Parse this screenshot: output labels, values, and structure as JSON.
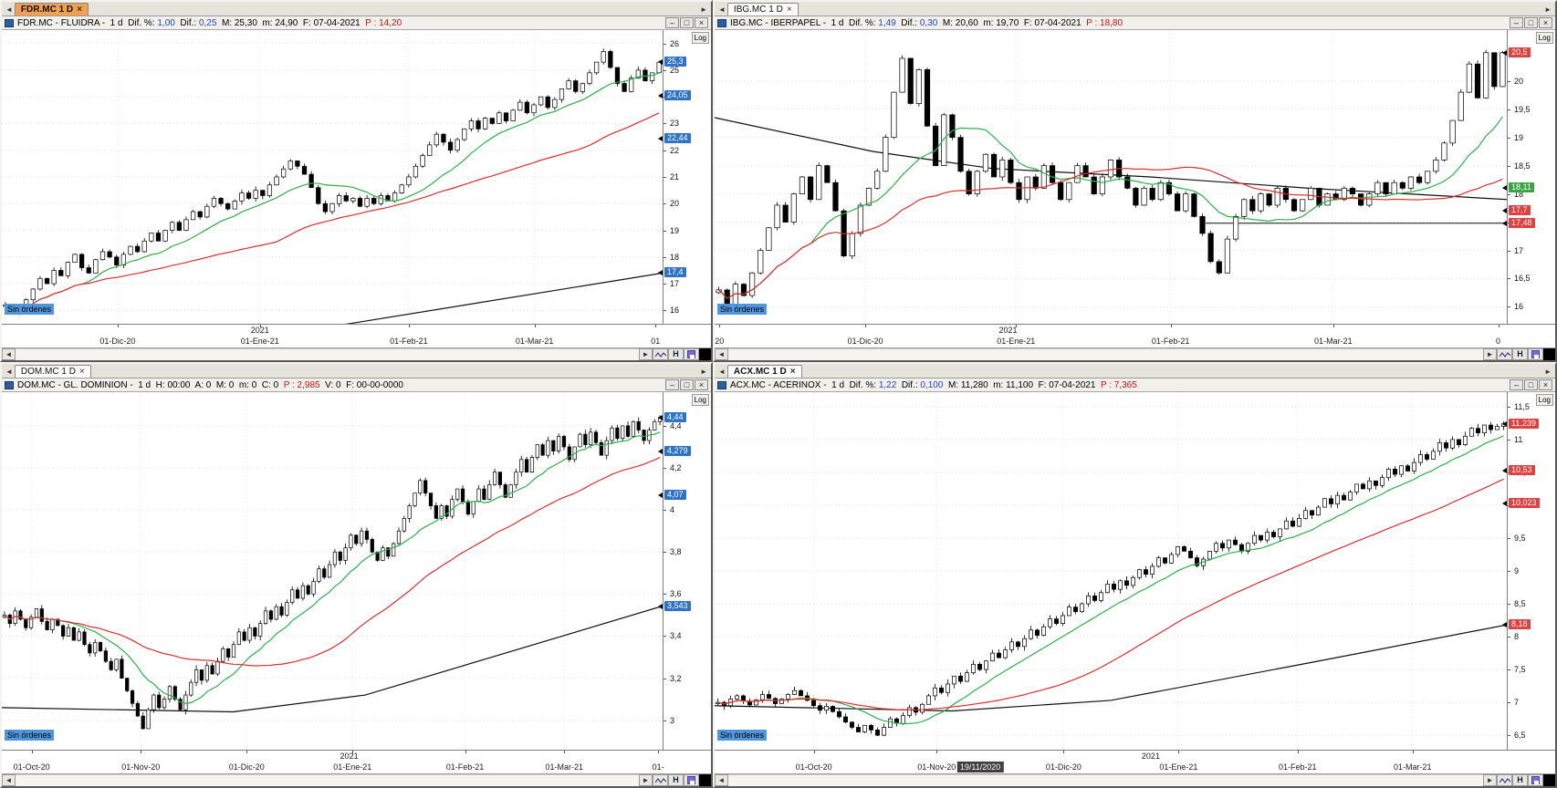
{
  "labels": {
    "log": "Log",
    "h": "H"
  },
  "icons": {
    "left_arrow": "◄",
    "right_arrow": "►",
    "minimize": "–",
    "maximize": "□",
    "close": "×"
  },
  "colors": {
    "up_candle": "#ffffff",
    "down_candle": "#000000",
    "ma_fast": "#2eb04a",
    "ma_slow": "#d93030",
    "trend": "#111111",
    "badge_blue": "#2f72c8",
    "badge_red": "#e04040",
    "badge_green": "#3aa545",
    "active_tab": "#f0a050",
    "no_orders_bg": "#4f96dc"
  },
  "panels": [
    {
      "tab": {
        "label": "FDR.MC 1 D",
        "active": true,
        "bold": true
      },
      "no_orders": "Sin órdenes",
      "title_segments": [
        {
          "text": "FDR.MC - FLUIDRA -  1 d  Dif. %: ",
          "color": "#000000"
        },
        {
          "text": "1,00",
          "color": "#2244cc"
        },
        {
          "text": "  Dif.: ",
          "color": "#000000"
        },
        {
          "text": "0,25",
          "color": "#2244cc"
        },
        {
          "text": "  M: 25,30  m: 24,90  F: 07-04-2021  ",
          "color": "#000000"
        },
        {
          "text": "P : 14,20",
          "color": "#cc1111"
        }
      ]
    },
    {
      "tab": {
        "label": "IBG.MC 1 D",
        "active": false,
        "bold": false
      },
      "no_orders": "Sin órdenes",
      "title_segments": [
        {
          "text": "IBG.MC - IBERPAPEL -  1 d  Dif. %: ",
          "color": "#000000"
        },
        {
          "text": "1,49",
          "color": "#2244cc"
        },
        {
          "text": "  Dif.: ",
          "color": "#000000"
        },
        {
          "text": "0,30",
          "color": "#2244cc"
        },
        {
          "text": "  M: 20,60  m: 19,70  F: 07-04-2021  ",
          "color": "#000000"
        },
        {
          "text": "P : 18,80",
          "color": "#cc1111"
        }
      ]
    },
    {
      "tab": {
        "label": "DOM.MC 1 D",
        "active": false,
        "bold": false
      },
      "no_orders": "Sin órdenes",
      "title_segments": [
        {
          "text": "DOM.MC - GL. DOMINION -  1 d  H: 00:00  A: 0  M: 0  m: 0  C: 0  ",
          "color": "#000000"
        },
        {
          "text": "P : 2,985",
          "color": "#cc1111"
        },
        {
          "text": "  V: 0  F: 00-00-0000",
          "color": "#000000"
        }
      ]
    },
    {
      "tab": {
        "label": "ACX.MC 1 D",
        "active": false,
        "bold": true
      },
      "no_orders": "Sin órdenes",
      "title_segments": [
        {
          "text": "ACX.MC - ACERINOX -  1 d  Dif. %: ",
          "color": "#000000"
        },
        {
          "text": "1,22",
          "color": "#2244cc"
        },
        {
          "text": "  Dif.: ",
          "color": "#000000"
        },
        {
          "text": "0,100",
          "color": "#2244cc"
        },
        {
          "text": "  M: 11,280  m: 11,100  F: 07-04-2021  ",
          "color": "#000000"
        },
        {
          "text": "P : 7,365",
          "color": "#cc1111"
        }
      ]
    }
  ],
  "chart_data": [
    {
      "type": "candlestick",
      "title": "FDR.MC - FLUIDRA 1d",
      "scale": "log",
      "y_min": 15.5,
      "y_max": 26.5,
      "y_ticks": [
        {
          "label": "26",
          "v": 26
        },
        {
          "label": "25",
          "v": 25
        },
        {
          "label": "24",
          "v": 24
        },
        {
          "label": "23",
          "v": 23
        },
        {
          "label": "22",
          "v": 22
        },
        {
          "label": "21",
          "v": 21
        },
        {
          "label": "20",
          "v": 20
        },
        {
          "label": "19",
          "v": 19
        },
        {
          "label": "18",
          "v": 18
        },
        {
          "label": "17",
          "v": 17
        },
        {
          "label": "16",
          "v": 16
        }
      ],
      "x_ticks": [
        {
          "label": "01-Dic-20",
          "pos": 0.175
        },
        {
          "label": "01-Ene-21",
          "pos": 0.39
        },
        {
          "label": "01-Feb-21",
          "pos": 0.615
        },
        {
          "label": "01-Mar-21",
          "pos": 0.805
        },
        {
          "label": "01",
          "pos": 0.988,
          "grid": false
        }
      ],
      "year_label": {
        "text": "2021",
        "pos": 0.39
      },
      "closes": [
        16.2,
        16.0,
        15.9,
        16.4,
        16.8,
        17.2,
        17.0,
        17.5,
        17.3,
        17.8,
        18.1,
        17.6,
        17.4,
        17.9,
        18.2,
        18.0,
        17.7,
        18.1,
        18.4,
        18.2,
        18.6,
        18.9,
        18.6,
        19.0,
        19.3,
        19.0,
        19.4,
        19.7,
        19.5,
        19.9,
        20.2,
        20.0,
        19.8,
        20.1,
        20.4,
        20.2,
        20.5,
        20.3,
        20.7,
        21.0,
        21.3,
        21.6,
        21.4,
        21.1,
        20.6,
        20.0,
        19.7,
        20.0,
        20.3,
        20.1,
        20.2,
        19.9,
        20.2,
        20.0,
        20.3,
        20.1,
        20.4,
        20.7,
        21.0,
        21.4,
        21.8,
        22.2,
        22.6,
        22.3,
        22.0,
        22.4,
        22.8,
        23.1,
        22.8,
        23.2,
        23.0,
        23.4,
        23.1,
        23.5,
        23.8,
        23.4,
        23.7,
        24.0,
        23.6,
        23.9,
        24.3,
        24.6,
        24.2,
        24.5,
        24.9,
        25.3,
        25.7,
        25.1,
        24.5,
        24.2,
        24.7,
        25.0,
        24.6,
        24.9,
        25.3
      ],
      "ma": [
        {
          "color": "#2eb04a",
          "window": 12
        },
        {
          "color": "#d93030",
          "window": 40
        }
      ],
      "trend": {
        "color": "#111111",
        "points": [
          {
            "pos": 0,
            "v": 13.4
          },
          {
            "pos": 1,
            "v": 17.4
          }
        ]
      },
      "badges": [
        {
          "label": "25,3",
          "v": 25.3,
          "bg": "#2f72c8"
        },
        {
          "label": "24,05",
          "v": 24.05,
          "bg": "#2f72c8"
        },
        {
          "label": "22,44",
          "v": 22.44,
          "bg": "#2f72c8"
        },
        {
          "label": "17,4",
          "v": 17.4,
          "bg": "#2f72c8"
        }
      ]
    },
    {
      "type": "candlestick",
      "title": "IBG.MC - IBERPAPEL 1d",
      "scale": "log",
      "y_min": 15.7,
      "y_max": 20.9,
      "y_ticks": [
        {
          "label": "20",
          "v": 20
        },
        {
          "label": "19,5",
          "v": 19.5
        },
        {
          "label": "19",
          "v": 19
        },
        {
          "label": "18,5",
          "v": 18.5
        },
        {
          "label": "18",
          "v": 18
        },
        {
          "label": "17,5",
          "v": 17.5
        },
        {
          "label": "17",
          "v": 17
        },
        {
          "label": "16,5",
          "v": 16.5
        },
        {
          "label": "16",
          "v": 16
        }
      ],
      "x_ticks": [
        {
          "label": "20",
          "pos": 0.006,
          "grid": false
        },
        {
          "label": "01-Dic-20",
          "pos": 0.19
        },
        {
          "label": "01-Ene-21",
          "pos": 0.38
        },
        {
          "label": "01-Feb-21",
          "pos": 0.575
        },
        {
          "label": "01-Mar-21",
          "pos": 0.78
        },
        {
          "label": "0",
          "pos": 0.988,
          "grid": false
        }
      ],
      "year_label": {
        "text": "2021",
        "pos": 0.37
      },
      "closes": [
        16.3,
        16.0,
        16.4,
        16.2,
        16.6,
        17.0,
        17.4,
        17.8,
        17.5,
        18.0,
        18.3,
        17.9,
        18.5,
        18.2,
        17.7,
        16.9,
        17.3,
        17.8,
        18.1,
        18.4,
        19.0,
        19.8,
        20.4,
        19.6,
        20.2,
        19.2,
        18.5,
        19.4,
        19.0,
        18.4,
        18.0,
        18.4,
        18.7,
        18.3,
        18.6,
        18.2,
        17.9,
        18.3,
        18.1,
        18.5,
        18.2,
        17.9,
        18.2,
        18.5,
        18.3,
        18.0,
        18.3,
        18.6,
        18.3,
        18.1,
        17.8,
        18.1,
        17.9,
        18.2,
        18.0,
        17.7,
        18.0,
        17.6,
        17.3,
        16.8,
        16.6,
        17.2,
        17.6,
        17.9,
        17.7,
        18.0,
        17.8,
        18.1,
        17.9,
        17.7,
        17.9,
        18.1,
        17.8,
        18.0,
        17.9,
        18.1,
        18.0,
        17.8,
        18.0,
        18.2,
        18.0,
        18.2,
        18.1,
        18.3,
        18.2,
        18.4,
        18.6,
        18.9,
        19.3,
        19.8,
        20.3,
        19.7,
        20.5,
        19.9,
        20.5
      ],
      "ma": [
        {
          "color": "#2eb04a",
          "window": 12
        },
        {
          "color": "#d93030",
          "window": 40
        }
      ],
      "trend": {
        "color": "#111111",
        "points": [
          {
            "pos": 0,
            "v": 19.35
          },
          {
            "pos": 0.2,
            "v": 18.75
          },
          {
            "pos": 0.35,
            "v": 18.45
          },
          {
            "pos": 0.55,
            "v": 18.3
          },
          {
            "pos": 0.75,
            "v": 18.1
          },
          {
            "pos": 1,
            "v": 17.9
          }
        ]
      },
      "hline": {
        "v": 17.48,
        "from": 0.62,
        "to": 1.0
      },
      "badges": [
        {
          "label": "20,5",
          "v": 20.5,
          "bg": "#e04040"
        },
        {
          "label": "18,11",
          "v": 18.11,
          "bg": "#3aa545"
        },
        {
          "label": "17,7",
          "v": 17.7,
          "bg": "#e04040"
        },
        {
          "label": "17,48",
          "v": 17.48,
          "bg": "#e04040"
        }
      ]
    },
    {
      "type": "candlestick",
      "title": "DOM.MC - GL. DOMINION 1d",
      "scale": "log",
      "y_min": 2.86,
      "y_max": 4.56,
      "y_ticks": [
        {
          "label": "4,4",
          "v": 4.4
        },
        {
          "label": "4,2",
          "v": 4.2
        },
        {
          "label": "4",
          "v": 4.0
        },
        {
          "label": "3,8",
          "v": 3.8
        },
        {
          "label": "3,6",
          "v": 3.6
        },
        {
          "label": "3,4",
          "v": 3.4
        },
        {
          "label": "3,2",
          "v": 3.2
        },
        {
          "label": "3",
          "v": 3.0
        }
      ],
      "x_ticks": [
        {
          "label": "01-Oct-20",
          "pos": 0.045
        },
        {
          "label": "01-Nov-20",
          "pos": 0.21
        },
        {
          "label": "01-Dic-20",
          "pos": 0.37
        },
        {
          "label": "01-Ene-21",
          "pos": 0.53
        },
        {
          "label": "01-Feb-21",
          "pos": 0.7
        },
        {
          "label": "01-Mar-21",
          "pos": 0.85
        },
        {
          "label": "01-",
          "pos": 0.992,
          "grid": false
        }
      ],
      "year_label": {
        "text": "2021",
        "pos": 0.525
      },
      "closes": [
        3.5,
        3.46,
        3.52,
        3.48,
        3.44,
        3.49,
        3.53,
        3.47,
        3.43,
        3.48,
        3.45,
        3.4,
        3.44,
        3.38,
        3.42,
        3.36,
        3.32,
        3.37,
        3.33,
        3.28,
        3.24,
        3.29,
        3.2,
        3.14,
        3.08,
        3.02,
        2.96,
        3.05,
        3.12,
        3.06,
        3.1,
        3.16,
        3.1,
        3.05,
        3.12,
        3.18,
        3.24,
        3.19,
        3.26,
        3.22,
        3.28,
        3.34,
        3.3,
        3.36,
        3.42,
        3.38,
        3.44,
        3.4,
        3.46,
        3.52,
        3.48,
        3.54,
        3.5,
        3.56,
        3.62,
        3.58,
        3.64,
        3.6,
        3.66,
        3.72,
        3.68,
        3.74,
        3.8,
        3.76,
        3.82,
        3.88,
        3.84,
        3.9,
        3.86,
        3.8,
        3.76,
        3.82,
        3.78,
        3.84,
        3.9,
        3.96,
        4.02,
        4.08,
        4.14,
        4.08,
        4.02,
        3.96,
        4.02,
        3.97,
        4.05,
        4.1,
        4.04,
        3.98,
        4.04,
        4.1,
        4.05,
        4.12,
        4.18,
        4.12,
        4.06,
        4.12,
        4.18,
        4.24,
        4.18,
        4.25,
        4.31,
        4.26,
        4.33,
        4.28,
        4.35,
        4.3,
        4.24,
        4.3,
        4.36,
        4.31,
        4.37,
        4.32,
        4.26,
        4.33,
        4.39,
        4.34,
        4.4,
        4.35,
        4.42,
        4.38,
        4.33,
        4.38,
        4.42,
        4.44
      ],
      "ma": [
        {
          "color": "#2eb04a",
          "window": 12
        },
        {
          "color": "#d93030",
          "window": 40
        }
      ],
      "trend": {
        "color": "#111111",
        "points": [
          {
            "pos": 0,
            "v": 3.06
          },
          {
            "pos": 0.35,
            "v": 3.04
          },
          {
            "pos": 0.55,
            "v": 3.12
          },
          {
            "pos": 1,
            "v": 3.543
          }
        ]
      },
      "badges": [
        {
          "label": "4,44",
          "v": 4.44,
          "bg": "#2f72c8"
        },
        {
          "label": "4,279",
          "v": 4.279,
          "bg": "#2f72c8"
        },
        {
          "label": "4,07",
          "v": 4.07,
          "bg": "#2f72c8"
        },
        {
          "label": "3,543",
          "v": 3.543,
          "bg": "#2f72c8"
        }
      ]
    },
    {
      "type": "candlestick",
      "title": "ACX.MC - ACERINOX 1d",
      "scale": "log",
      "y_min": 6.28,
      "y_max": 11.72,
      "y_ticks": [
        {
          "label": "11,5",
          "v": 11.5
        },
        {
          "label": "11",
          "v": 11
        },
        {
          "label": "10,5",
          "v": 10.5
        },
        {
          "label": "10",
          "v": 10
        },
        {
          "label": "9,5",
          "v": 9.5
        },
        {
          "label": "9",
          "v": 9
        },
        {
          "label": "8,5",
          "v": 8.5
        },
        {
          "label": "8",
          "v": 8
        },
        {
          "label": "7,5",
          "v": 7.5
        },
        {
          "label": "7",
          "v": 7
        },
        {
          "label": "6,5",
          "v": 6.5
        }
      ],
      "x_ticks": [
        {
          "label": "01-Oct-20",
          "pos": 0.125
        },
        {
          "label": "01-Nov-20",
          "pos": 0.28
        },
        {
          "label": "01-Dic-20",
          "pos": 0.44
        },
        {
          "label": "01-Ene-21",
          "pos": 0.585
        },
        {
          "label": "01-Feb-21",
          "pos": 0.735
        },
        {
          "label": "01-Mar-21",
          "pos": 0.88
        }
      ],
      "year_label": {
        "text": "2021",
        "pos": 0.55
      },
      "axis_tooltip": {
        "text": "19/11/2020",
        "pos": 0.335
      },
      "closes": [
        7.0,
        6.95,
        7.05,
        7.1,
        7.02,
        6.96,
        7.04,
        7.12,
        7.06,
        6.98,
        7.05,
        7.12,
        7.18,
        7.1,
        7.03,
        6.95,
        6.88,
        6.94,
        6.86,
        6.78,
        6.7,
        6.62,
        6.55,
        6.65,
        6.58,
        6.5,
        6.62,
        6.75,
        6.68,
        6.8,
        6.92,
        6.85,
        6.97,
        7.1,
        7.22,
        7.15,
        7.28,
        7.4,
        7.32,
        7.45,
        7.58,
        7.5,
        7.63,
        7.75,
        7.68,
        7.8,
        7.92,
        7.85,
        7.97,
        8.1,
        8.02,
        8.15,
        8.27,
        8.2,
        8.32,
        8.45,
        8.38,
        8.5,
        8.62,
        8.55,
        8.67,
        8.8,
        8.72,
        8.85,
        8.78,
        8.9,
        9.02,
        8.95,
        9.07,
        9.2,
        9.12,
        9.25,
        9.37,
        9.3,
        9.2,
        9.08,
        9.18,
        9.3,
        9.42,
        9.35,
        9.47,
        9.4,
        9.3,
        9.42,
        9.54,
        9.47,
        9.59,
        9.52,
        9.64,
        9.76,
        9.68,
        9.8,
        9.92,
        9.85,
        9.97,
        10.1,
        10.02,
        10.15,
        10.08,
        10.2,
        10.32,
        10.25,
        10.37,
        10.3,
        10.42,
        10.55,
        10.47,
        10.6,
        10.52,
        10.65,
        10.77,
        10.7,
        10.82,
        10.95,
        10.87,
        11.0,
        10.92,
        11.05,
        11.17,
        11.1,
        11.22,
        11.15,
        11.2,
        11.24
      ],
      "ma": [
        {
          "color": "#2eb04a",
          "window": 12
        },
        {
          "color": "#d93030",
          "window": 40
        }
      ],
      "trend": {
        "color": "#111111",
        "points": [
          {
            "pos": 0,
            "v": 6.95
          },
          {
            "pos": 0.3,
            "v": 6.87
          },
          {
            "pos": 0.5,
            "v": 7.03
          },
          {
            "pos": 0.75,
            "v": 7.6
          },
          {
            "pos": 1,
            "v": 8.18
          }
        ]
      },
      "badges": [
        {
          "label": "11,239",
          "v": 11.239,
          "bg": "#e04040"
        },
        {
          "label": "10,53",
          "v": 10.53,
          "bg": "#e04040"
        },
        {
          "label": "10,023",
          "v": 10.023,
          "bg": "#e04040"
        },
        {
          "label": "8,18",
          "v": 8.18,
          "bg": "#e04040"
        }
      ]
    }
  ]
}
